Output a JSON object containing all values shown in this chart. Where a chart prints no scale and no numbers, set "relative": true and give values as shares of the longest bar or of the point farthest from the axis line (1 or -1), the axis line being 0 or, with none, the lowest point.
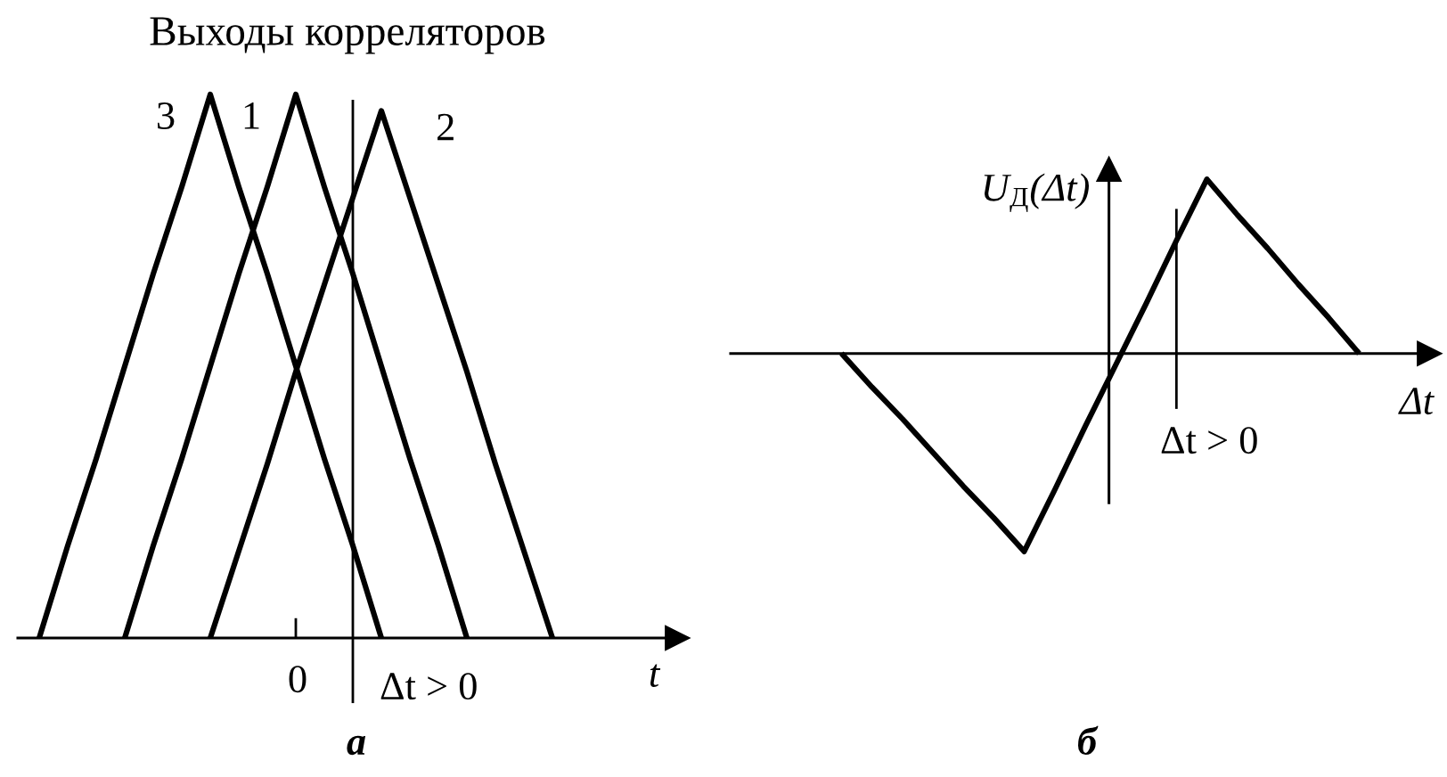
{
  "chart_data": [
    {
      "type": "line",
      "title": "Выходы корреляторов",
      "xlabel": "t",
      "relative": true,
      "categories": [
        null,
        null,
        null,
        null,
        null,
        null,
        null,
        null,
        null,
        null,
        null,
        null,
        null,
        null,
        null,
        null,
        null,
        null,
        null
      ],
      "annotations": [
        "0",
        "Δt > 0",
        "а"
      ],
      "series": [
        {
          "name": "1",
          "color": "#000000",
          "values": [
            null,
            null,
            null,
            0,
            0.17,
            0.33,
            0.5,
            0.67,
            0.83,
            1,
            0.83,
            0.67,
            0.5,
            0.33,
            0.17,
            0,
            null,
            null,
            null
          ]
        },
        {
          "name": "2",
          "color": "#000000",
          "values": [
            null,
            null,
            null,
            null,
            null,
            null,
            0,
            0.16,
            0.32,
            0.49,
            0.65,
            0.81,
            0.97,
            0.81,
            0.65,
            0.49,
            0.32,
            0.16,
            0
          ]
        },
        {
          "name": "3",
          "color": "#000000",
          "values": [
            0,
            0.17,
            0.33,
            0.5,
            0.67,
            0.83,
            1,
            0.83,
            0.67,
            0.5,
            0.33,
            0.17,
            0,
            null,
            null,
            null,
            null,
            null,
            null
          ]
        }
      ]
    },
    {
      "type": "line",
      "xlabel": "Δt",
      "ylabel": "U$_{Д}$(Δt)",
      "relative": true,
      "categories": [
        null,
        null,
        null,
        null,
        null,
        null,
        null,
        null,
        null,
        null,
        null,
        null,
        null,
        null,
        null,
        null,
        null,
        null
      ],
      "annotations": [
        "Δt > 0",
        "б"
      ],
      "series": [
        {
          "color": "#000000",
          "values": [
            0,
            -0.17,
            -0.33,
            -0.5,
            -0.67,
            -0.83,
            -1,
            -0.69,
            -0.37,
            -0.06,
            0.25,
            0.57,
            0.88,
            0.7,
            0.53,
            0.35,
            0.18,
            0
          ]
        }
      ]
    }
  ]
}
